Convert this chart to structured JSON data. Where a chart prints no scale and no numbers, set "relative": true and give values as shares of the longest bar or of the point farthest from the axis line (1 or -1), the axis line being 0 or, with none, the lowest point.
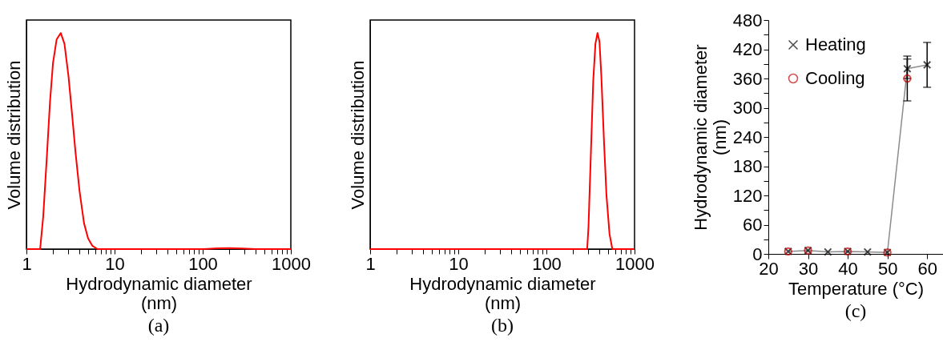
{
  "chart_data": [
    {
      "type": "line",
      "relative": true,
      "log": "x",
      "xlabel": "Hydrodynamic diameter (nm)",
      "ylabel": "Volume distribution",
      "annotations": [
        "(a)"
      ],
      "xlim": [
        1,
        1000
      ],
      "xticks": [
        1,
        {
          "value": 2,
          "label": null
        },
        {
          "value": 3,
          "label": null
        },
        {
          "value": 4,
          "label": null
        },
        {
          "value": 5,
          "label": null
        },
        {
          "value": 6,
          "label": null
        },
        {
          "value": 7,
          "label": null
        },
        {
          "value": 8,
          "label": null
        },
        {
          "value": 9,
          "label": null
        },
        10,
        {
          "value": 20,
          "label": null
        },
        {
          "value": 30,
          "label": null
        },
        {
          "value": 40,
          "label": null
        },
        {
          "value": 50,
          "label": null
        },
        {
          "value": 60,
          "label": null
        },
        {
          "value": 70,
          "label": null
        },
        {
          "value": 80,
          "label": null
        },
        {
          "value": 90,
          "label": null
        },
        100,
        {
          "value": 200,
          "label": null
        },
        {
          "value": 300,
          "label": null
        },
        {
          "value": 400,
          "label": null
        },
        {
          "value": 500,
          "label": null
        },
        {
          "value": 600,
          "label": null
        },
        {
          "value": 700,
          "label": null
        },
        {
          "value": 800,
          "label": null
        },
        {
          "value": 900,
          "label": null
        },
        1000
      ],
      "x": [
        1,
        1.43,
        1.55,
        1.7,
        1.85,
        2.0,
        2.2,
        2.45,
        2.7,
        3.0,
        3.3,
        3.6,
        4.0,
        4.5,
        5.0,
        5.6,
        6.4,
        100,
        150,
        200,
        280,
        400,
        1000
      ],
      "series": [
        {
          "color": "#ff0000",
          "values": [
            0,
            0,
            0.15,
            0.42,
            0.68,
            0.86,
            0.97,
            1,
            0.95,
            0.8,
            0.62,
            0.45,
            0.27,
            0.12,
            0.05,
            0.015,
            0,
            0,
            0.004,
            0.005,
            0.003,
            0,
            0
          ]
        }
      ],
      "grid": false,
      "legend": false,
      "line_style": "solid",
      "marker": "none"
    },
    {
      "type": "line",
      "relative": true,
      "log": "x",
      "xlabel": "Hydrodynamic diameter (nm)",
      "ylabel": "Volume distribution",
      "annotations": [
        "(b)"
      ],
      "xlim": [
        1,
        1000
      ],
      "xticks": [
        1,
        {
          "value": 2,
          "label": null
        },
        {
          "value": 3,
          "label": null
        },
        {
          "value": 4,
          "label": null
        },
        {
          "value": 5,
          "label": null
        },
        {
          "value": 6,
          "label": null
        },
        {
          "value": 7,
          "label": null
        },
        {
          "value": 8,
          "label": null
        },
        {
          "value": 9,
          "label": null
        },
        10,
        {
          "value": 20,
          "label": null
        },
        {
          "value": 30,
          "label": null
        },
        {
          "value": 40,
          "label": null
        },
        {
          "value": 50,
          "label": null
        },
        {
          "value": 60,
          "label": null
        },
        {
          "value": 70,
          "label": null
        },
        {
          "value": 80,
          "label": null
        },
        {
          "value": 90,
          "label": null
        },
        100,
        {
          "value": 200,
          "label": null
        },
        {
          "value": 300,
          "label": null
        },
        {
          "value": 400,
          "label": null
        },
        {
          "value": 500,
          "label": null
        },
        {
          "value": 600,
          "label": null
        },
        {
          "value": 700,
          "label": null
        },
        {
          "value": 800,
          "label": null
        },
        {
          "value": 900,
          "label": null
        },
        1000
      ],
      "x": [
        1,
        290,
        300,
        320,
        340,
        360,
        380,
        400,
        420,
        450,
        480,
        520,
        560,
        1000
      ],
      "series": [
        {
          "color": "#ff0000",
          "values": [
            0,
            0,
            0.1,
            0.45,
            0.78,
            0.95,
            1,
            0.96,
            0.8,
            0.5,
            0.25,
            0.07,
            0,
            0
          ]
        }
      ],
      "grid": false,
      "legend": false,
      "line_style": "solid",
      "marker": "none"
    },
    {
      "type": "line",
      "xlabel": "Temperature (°C)",
      "ylabel": "Hydrodynamic diameter (nm)",
      "annotations": [
        "(c)"
      ],
      "xlim": [
        20,
        64
      ],
      "xticks": [
        20,
        30,
        40,
        50,
        60
      ],
      "ylim": [
        0,
        480
      ],
      "yticks": [
        0,
        {
          "value": 30,
          "label": null
        },
        60,
        {
          "value": 90,
          "label": null
        },
        120,
        {
          "value": 150,
          "label": null
        },
        180,
        {
          "value": 210,
          "label": null
        },
        240,
        {
          "value": 270,
          "label": null
        },
        300,
        {
          "value": 330,
          "label": null
        },
        360,
        {
          "value": 390,
          "label": null
        },
        420,
        {
          "value": 450,
          "label": null
        },
        480
      ],
      "series": [
        {
          "name": "Heating",
          "type": "line",
          "marker": "cross",
          "color": "#000000",
          "x": [
            25,
            30,
            35,
            40,
            45,
            50,
            55,
            60
          ],
          "values": [
            5,
            7,
            4,
            5,
            4,
            3,
            380,
            388
          ],
          "errors": [
            null,
            null,
            null,
            null,
            null,
            null,
            20,
            46
          ]
        },
        {
          "name": "Cooling",
          "type": "scatter",
          "marker": "circle",
          "color": "#c00000",
          "x": [
            25,
            30,
            40,
            50,
            55
          ],
          "values": [
            5,
            7,
            5,
            3,
            360
          ],
          "errors": [
            null,
            null,
            null,
            null,
            46
          ]
        }
      ],
      "grid": false,
      "legend": "top left",
      "line_style": "solid"
    }
  ]
}
